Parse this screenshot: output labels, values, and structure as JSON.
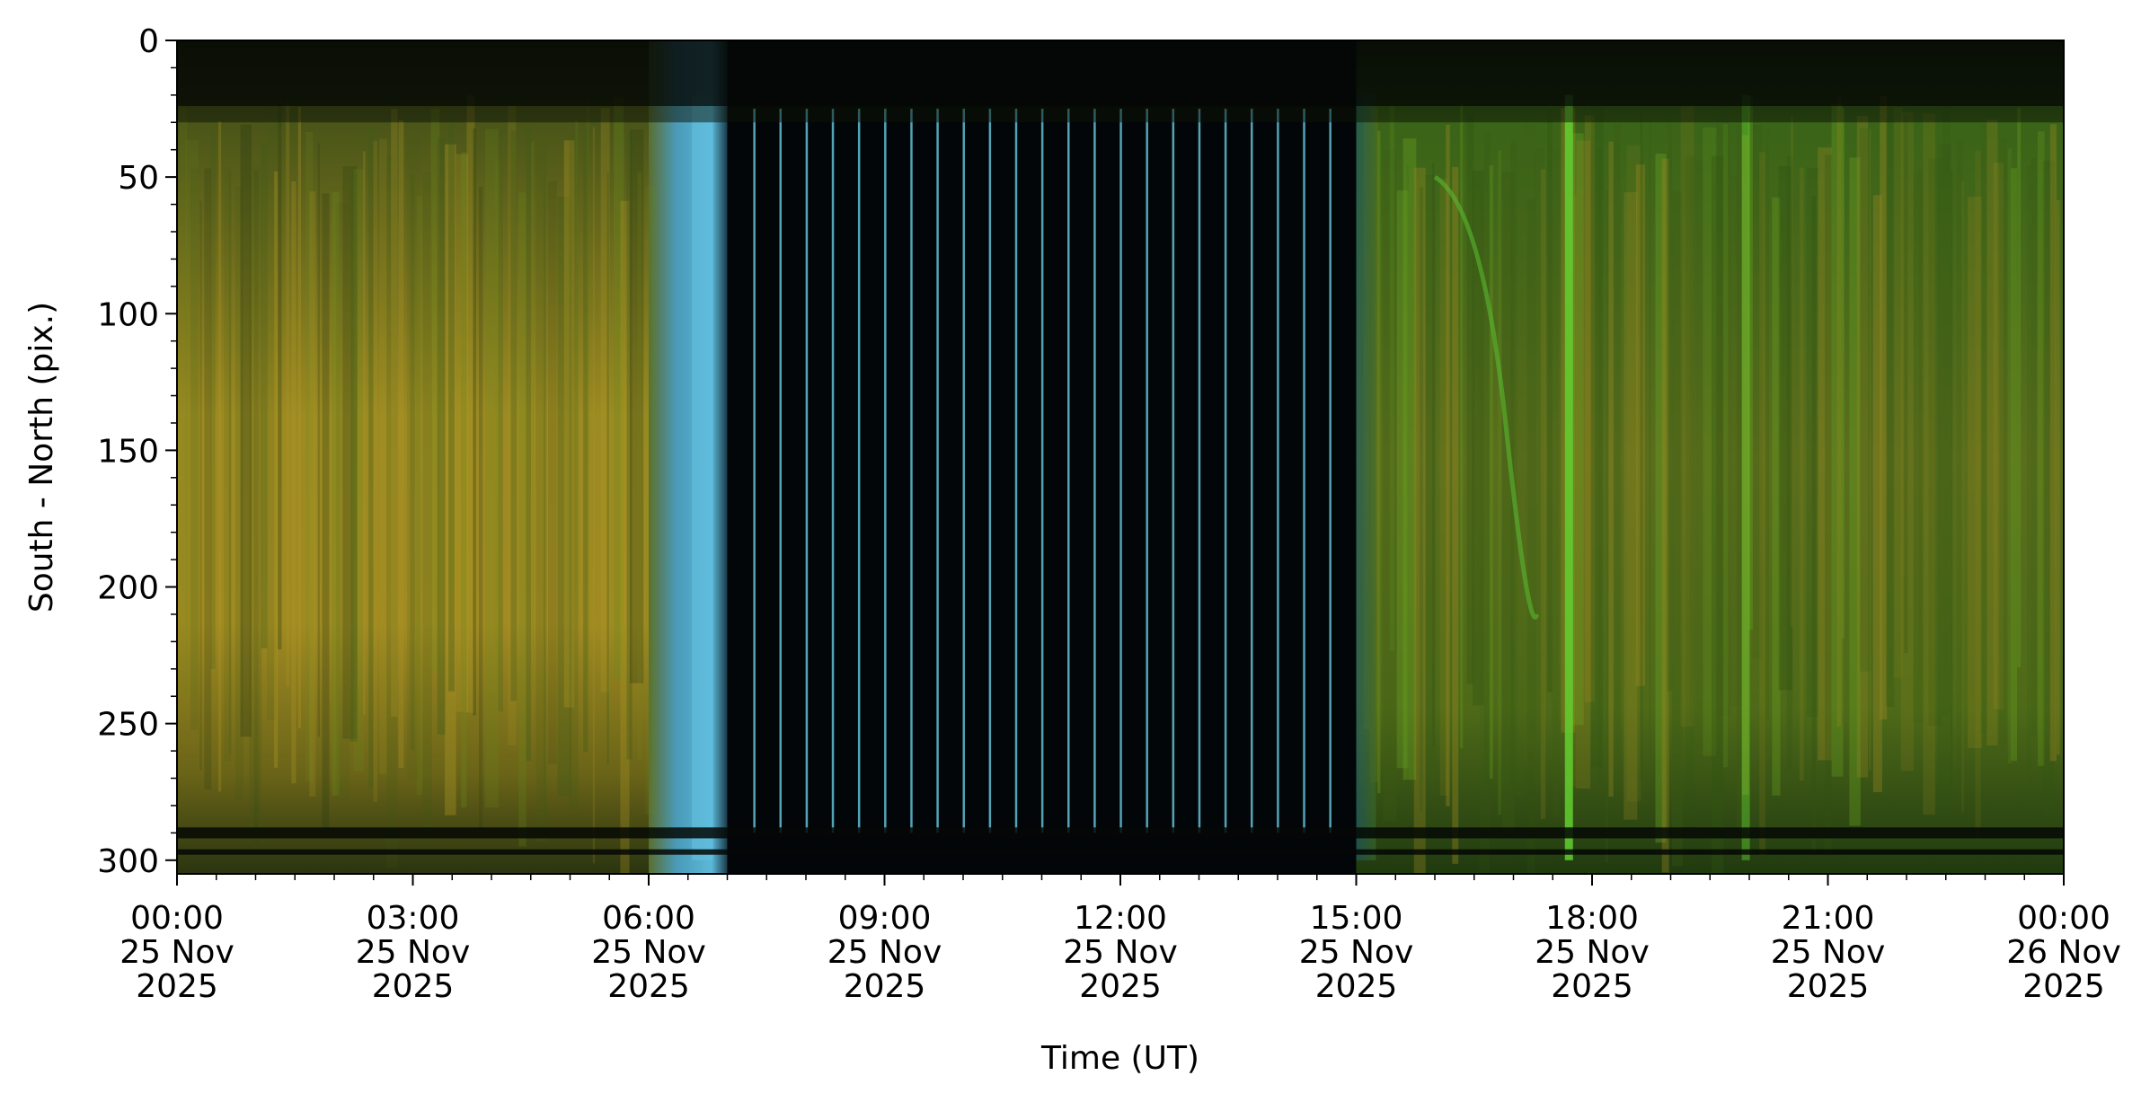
{
  "chart_data": {
    "type": "heatmap",
    "title": "",
    "xlabel": "Time (UT)",
    "ylabel": "South - North (pix.)",
    "x_unit": "hours since 00:00 25 Nov 2025",
    "xlim": [
      0,
      24
    ],
    "ylim": [
      305,
      0
    ],
    "y_inverted": true,
    "grid": false,
    "x_ticks": [
      {
        "value": 0,
        "line1": "00:00",
        "line2": "25 Nov",
        "line3": "2025"
      },
      {
        "value": 3,
        "line1": "03:00",
        "line2": "25 Nov",
        "line3": "2025"
      },
      {
        "value": 6,
        "line1": "06:00",
        "line2": "25 Nov",
        "line3": "2025"
      },
      {
        "value": 9,
        "line1": "09:00",
        "line2": "25 Nov",
        "line3": "2025"
      },
      {
        "value": 12,
        "line1": "12:00",
        "line2": "25 Nov",
        "line3": "2025"
      },
      {
        "value": 15,
        "line1": "15:00",
        "line2": "25 Nov",
        "line3": "2025"
      },
      {
        "value": 18,
        "line1": "18:00",
        "line2": "25 Nov",
        "line3": "2025"
      },
      {
        "value": 21,
        "line1": "21:00",
        "line2": "25 Nov",
        "line3": "2025"
      },
      {
        "value": 24,
        "line1": "00:00",
        "line2": "26 Nov",
        "line3": "2025"
      }
    ],
    "y_ticks": [
      {
        "value": 0,
        "label": "0"
      },
      {
        "value": 50,
        "label": "50"
      },
      {
        "value": 100,
        "label": "100"
      },
      {
        "value": 150,
        "label": "150"
      },
      {
        "value": 200,
        "label": "200"
      },
      {
        "value": 250,
        "label": "250"
      },
      {
        "value": 300,
        "label": "300"
      }
    ],
    "x_minor_step": 0.5,
    "y_minor_step": 10,
    "segments": [
      {
        "name": "daytime-yellow-green",
        "x_start": 0,
        "x_end": 6.0,
        "color": "#8a7a1c"
      },
      {
        "name": "twilight-cyan",
        "x_start": 6.0,
        "x_end": 7.0,
        "color": "#4aa3c4"
      },
      {
        "name": "night-dark",
        "x_start": 7.0,
        "x_end": 15.0,
        "color": "#020608"
      },
      {
        "name": "daytime-green",
        "x_start": 15.0,
        "x_end": 24.0,
        "color": "#3f6e1a"
      }
    ],
    "cyan_streaks_start": 7.33,
    "cyan_streaks_end": 14.67,
    "cyan_streak_step": 0.333,
    "bright_green_lines": [
      17.7,
      19.95
    ],
    "dark_bands_y": [
      [
        0,
        24
      ],
      [
        288,
        292
      ],
      [
        296,
        298
      ]
    ]
  }
}
